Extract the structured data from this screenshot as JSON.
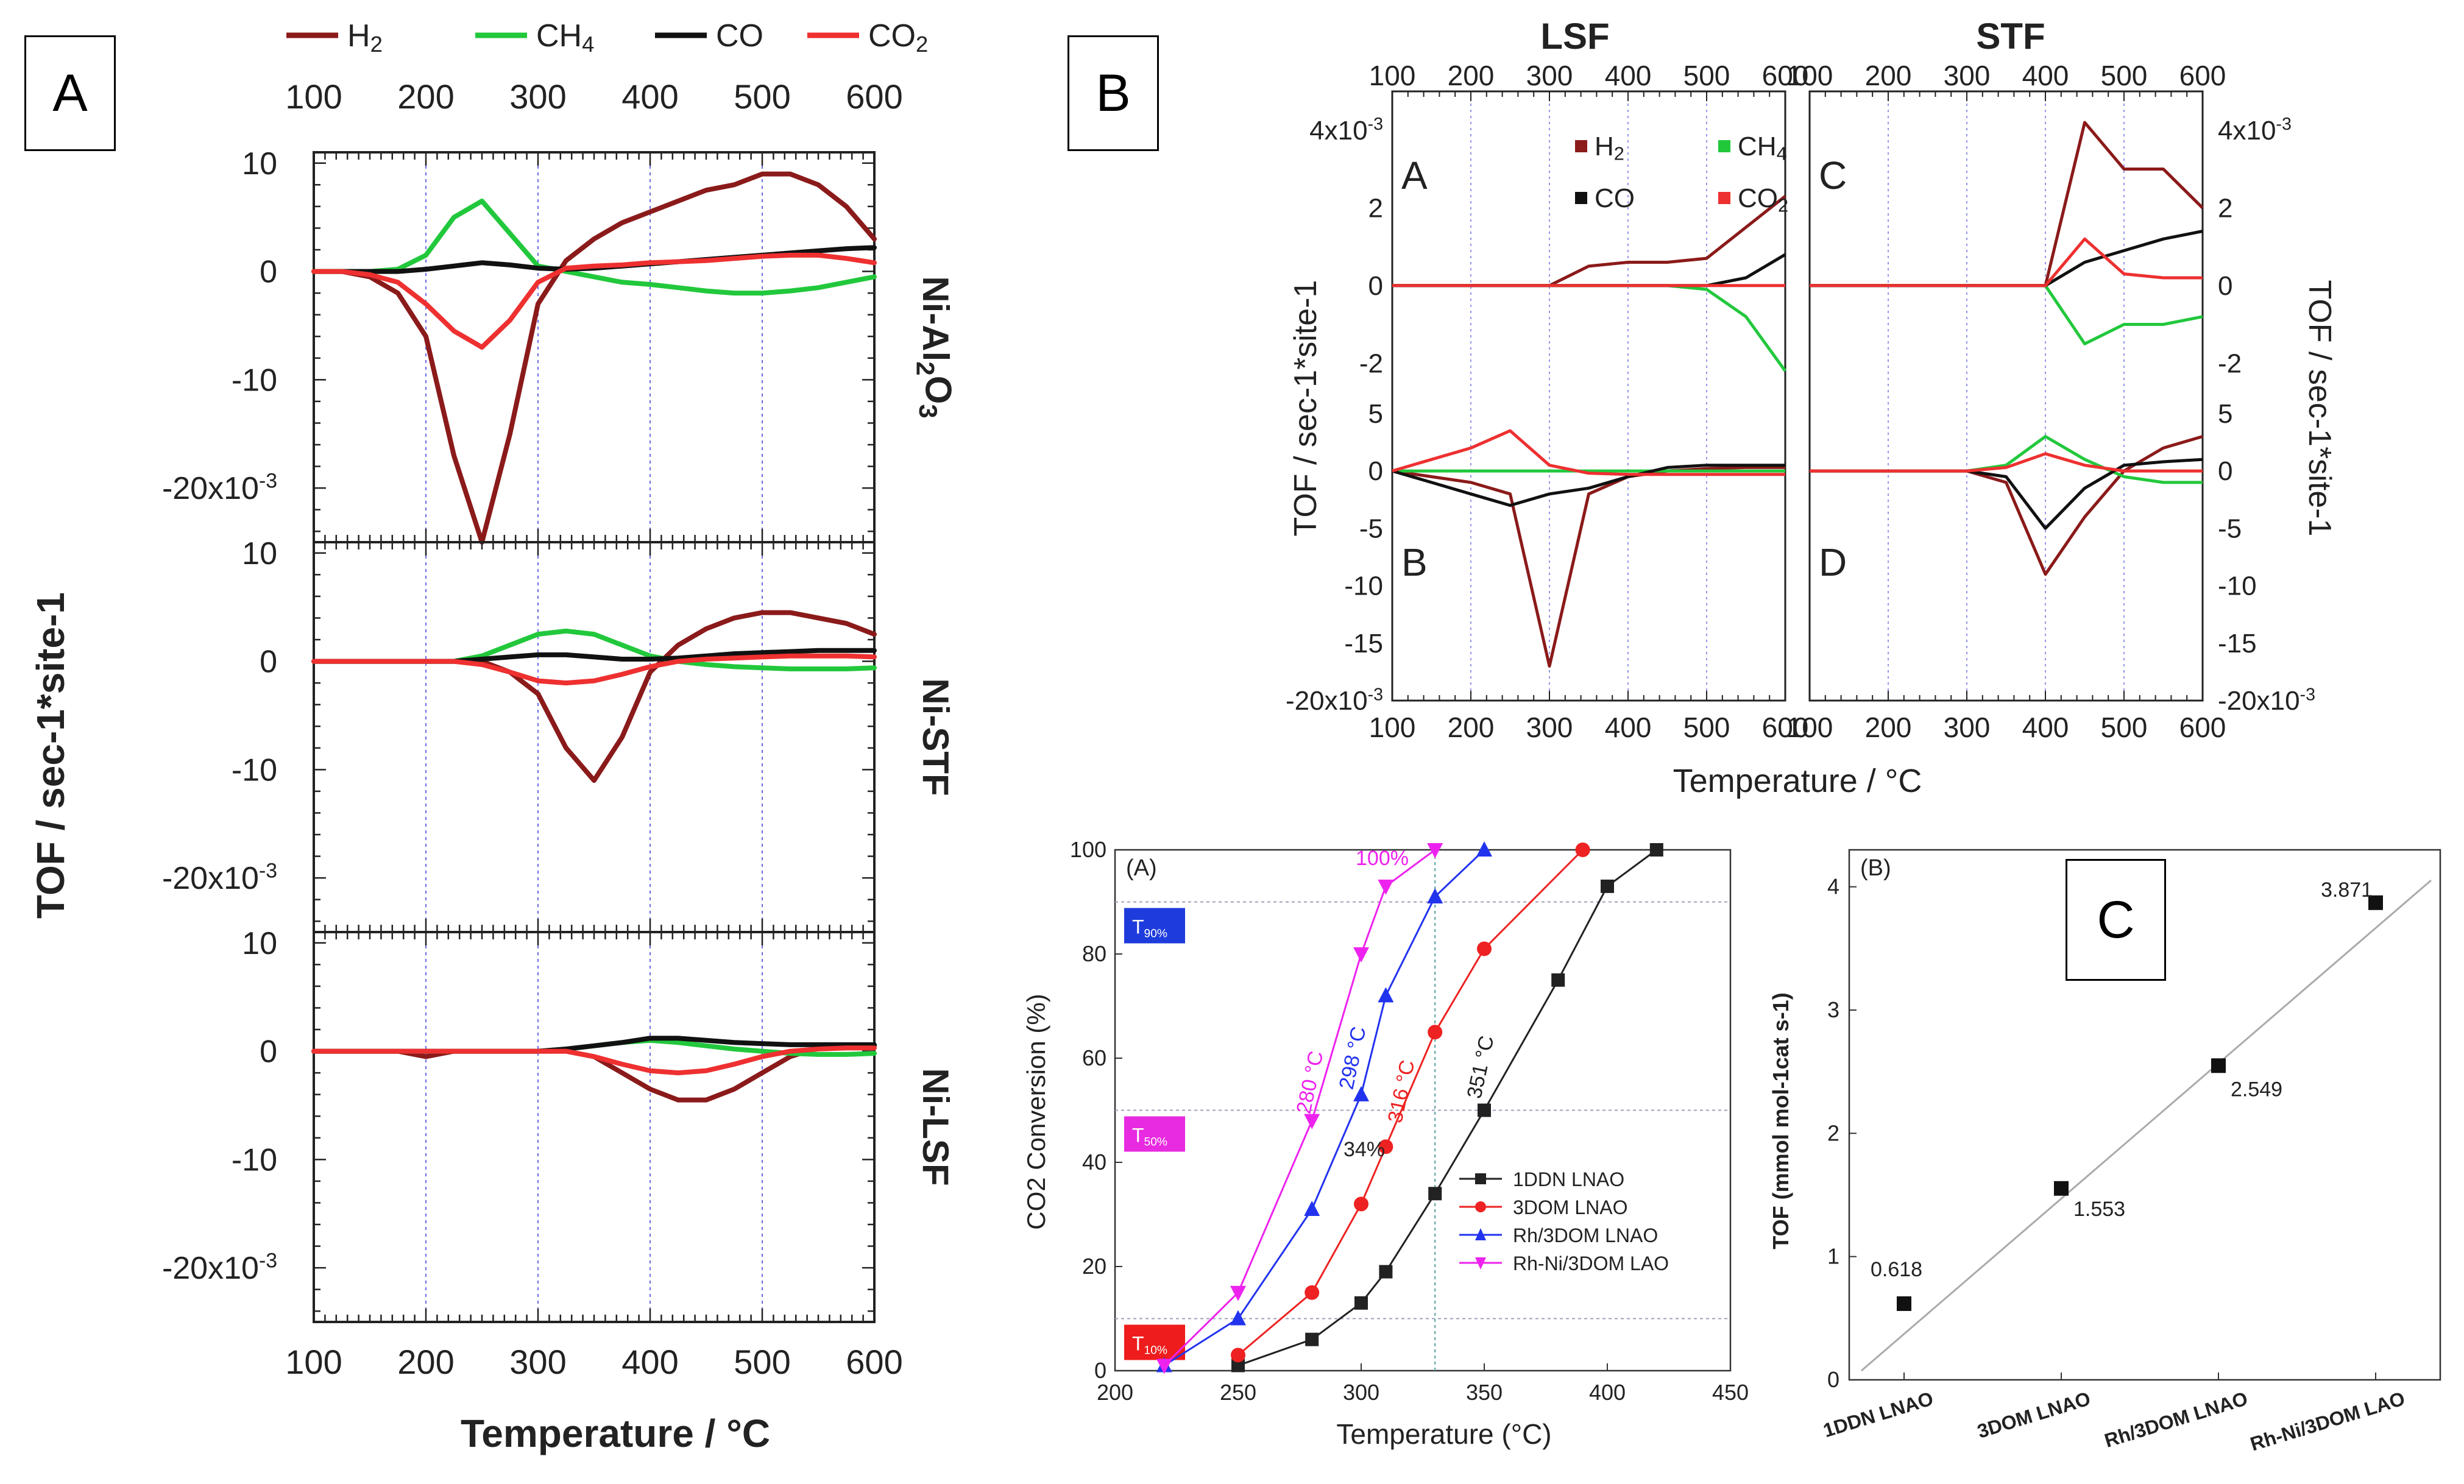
{
  "labels": {
    "a": "A",
    "b": "B",
    "c": "C"
  },
  "chart_data": [
    {
      "type": "line",
      "id": "figA",
      "legend": [
        "H2",
        "CH4",
        "CO",
        "CO2"
      ],
      "colors": {
        "H2": "#8b1a1a",
        "CH4": "#22c83c",
        "CO": "#111111",
        "CO2": "#ee3030"
      },
      "xlabel": "Temperature / °C",
      "ylabel": "TOF / sec-1*site-1",
      "x_ticks": [
        100,
        200,
        300,
        400,
        500,
        600
      ],
      "xlim": [
        100,
        600
      ],
      "y_ticks": [
        "10",
        "0",
        "-10",
        "-20x10-3"
      ],
      "ylim": [
        -25,
        11
      ],
      "x": [
        100,
        125,
        150,
        175,
        200,
        225,
        250,
        275,
        300,
        325,
        350,
        375,
        400,
        425,
        450,
        475,
        500,
        525,
        550,
        575,
        600
      ],
      "panels": [
        {
          "name": "Ni-Al2O3",
          "series": [
            {
              "name": "H2",
              "values": [
                0,
                0,
                -0.5,
                -2,
                -6,
                -17,
                -25,
                -15,
                -3,
                1,
                3,
                4.5,
                5.5,
                6.5,
                7.5,
                8,
                9,
                9,
                8,
                6,
                3
              ]
            },
            {
              "name": "CH4",
              "values": [
                0,
                0,
                0,
                0.2,
                1.5,
                5,
                6.5,
                3.5,
                0.5,
                0,
                -0.5,
                -1,
                -1.2,
                -1.5,
                -1.8,
                -2,
                -2,
                -1.8,
                -1.5,
                -1,
                -0.5
              ]
            },
            {
              "name": "CO",
              "values": [
                0,
                0,
                0,
                0,
                0.2,
                0.5,
                0.8,
                0.6,
                0.3,
                0.2,
                0.3,
                0.5,
                0.7,
                0.9,
                1.1,
                1.3,
                1.5,
                1.7,
                1.9,
                2.1,
                2.2
              ]
            },
            {
              "name": "CO2",
              "values": [
                0,
                0,
                -0.3,
                -1,
                -3,
                -5.5,
                -7,
                -4.5,
                -1,
                0.3,
                0.5,
                0.6,
                0.8,
                0.9,
                1,
                1.2,
                1.4,
                1.5,
                1.5,
                1.2,
                0.8
              ]
            }
          ]
        },
        {
          "name": "Ni-STF",
          "series": [
            {
              "name": "H2",
              "values": [
                0,
                0,
                0,
                0,
                0,
                0,
                0,
                -1,
                -3,
                -8,
                -11,
                -7,
                -1,
                1.5,
                3,
                4,
                4.5,
                4.5,
                4,
                3.5,
                2.5
              ]
            },
            {
              "name": "CH4",
              "values": [
                0,
                0,
                0,
                0,
                0,
                0,
                0.5,
                1.5,
                2.5,
                2.8,
                2.5,
                1.5,
                0.5,
                0,
                -0.3,
                -0.5,
                -0.6,
                -0.7,
                -0.7,
                -0.7,
                -0.6
              ]
            },
            {
              "name": "CO",
              "values": [
                0,
                0,
                0,
                0,
                0,
                0,
                0.2,
                0.4,
                0.6,
                0.6,
                0.4,
                0.2,
                0.2,
                0.3,
                0.5,
                0.7,
                0.8,
                0.9,
                1,
                1,
                1
              ]
            },
            {
              "name": "CO2",
              "values": [
                0,
                0,
                0,
                0,
                0,
                0,
                -0.3,
                -1,
                -1.8,
                -2,
                -1.8,
                -1.2,
                -0.5,
                0,
                0.2,
                0.3,
                0.4,
                0.5,
                0.5,
                0.5,
                0.4
              ]
            }
          ]
        },
        {
          "name": "Ni-LSF",
          "series": [
            {
              "name": "H2",
              "values": [
                0,
                0,
                0,
                0,
                -0.5,
                0,
                0,
                0,
                0,
                0,
                -0.5,
                -2,
                -3.5,
                -4.5,
                -4.5,
                -3.5,
                -2,
                -0.5,
                0.3,
                0.5,
                0.5
              ]
            },
            {
              "name": "CH4",
              "values": [
                0,
                0,
                0,
                0,
                0,
                0,
                0,
                0,
                0,
                0.2,
                0.5,
                0.8,
                1,
                0.8,
                0.5,
                0.2,
                0,
                -0.2,
                -0.3,
                -0.3,
                -0.2
              ]
            },
            {
              "name": "CO",
              "values": [
                0,
                0,
                0,
                0,
                0,
                0,
                0,
                0,
                0,
                0.2,
                0.5,
                0.8,
                1.2,
                1.2,
                1,
                0.8,
                0.7,
                0.6,
                0.6,
                0.6,
                0.6
              ]
            },
            {
              "name": "CO2",
              "values": [
                0,
                0,
                0,
                0,
                0,
                0,
                0,
                0,
                0,
                0,
                -0.5,
                -1.2,
                -1.8,
                -2,
                -1.8,
                -1.2,
                -0.5,
                0,
                0.2,
                0.3,
                0.3
              ]
            }
          ]
        }
      ]
    },
    {
      "type": "line",
      "id": "figB",
      "titles": [
        "LSF",
        "STF"
      ],
      "legend": [
        "H2",
        "CH4",
        "CO",
        "CO2"
      ],
      "xlabel": "Temperature / °C",
      "ylabel": "TOF / sec-1*site-1",
      "x_ticks": [
        100,
        200,
        300,
        400,
        500,
        600
      ],
      "xlim": [
        100,
        600
      ],
      "top_y_ticks": [
        "4x10-3",
        "2",
        "0",
        "-2"
      ],
      "top_ylim": [
        -3,
        5
      ],
      "bottom_y_ticks": [
        "5",
        "0",
        "-5",
        "-10",
        "-15",
        "-20x10-3"
      ],
      "bottom_ylim": [
        -20,
        6
      ],
      "x": [
        100,
        150,
        200,
        250,
        300,
        350,
        400,
        450,
        500,
        550,
        600
      ],
      "panels": [
        {
          "name": "A",
          "series": [
            {
              "name": "H2",
              "values": [
                0,
                0,
                0,
                0,
                0,
                0.5,
                0.6,
                0.6,
                0.7,
                1.5,
                2.3
              ]
            },
            {
              "name": "CH4",
              "values": [
                0,
                0,
                0,
                0,
                0,
                0,
                0,
                0,
                -0.1,
                -0.8,
                -2.2
              ]
            },
            {
              "name": "CO",
              "values": [
                0,
                0,
                0,
                0,
                0,
                0,
                0,
                0,
                0,
                0.2,
                0.8
              ]
            },
            {
              "name": "CO2",
              "values": [
                0,
                0,
                0,
                0,
                0,
                0,
                0,
                0,
                0,
                0,
                0
              ]
            }
          ]
        },
        {
          "name": "B",
          "series": [
            {
              "name": "H2",
              "values": [
                0,
                -0.5,
                -1,
                -2,
                -17,
                -2,
                -0.5,
                0,
                0.2,
                0.3,
                0.3
              ]
            },
            {
              "name": "CH4",
              "values": [
                0,
                0,
                0,
                0,
                0,
                0,
                0,
                0,
                0,
                0,
                0
              ]
            },
            {
              "name": "CO",
              "values": [
                0,
                -1,
                -2,
                -3,
                -2,
                -1.5,
                -0.5,
                0.3,
                0.5,
                0.5,
                0.5
              ]
            },
            {
              "name": "CO2",
              "values": [
                0,
                1,
                2,
                3.5,
                0.5,
                -0.2,
                -0.3,
                -0.3,
                -0.3,
                -0.3,
                -0.3
              ]
            }
          ]
        },
        {
          "name": "C",
          "series": [
            {
              "name": "H2",
              "values": [
                0,
                0,
                0,
                0,
                0,
                0,
                0,
                4.2,
                3,
                3,
                2
              ]
            },
            {
              "name": "CH4",
              "values": [
                0,
                0,
                0,
                0,
                0,
                0,
                0,
                -1.5,
                -1,
                -1,
                -0.8
              ]
            },
            {
              "name": "CO",
              "values": [
                0,
                0,
                0,
                0,
                0,
                0,
                0,
                0.6,
                0.9,
                1.2,
                1.4
              ]
            },
            {
              "name": "CO2",
              "values": [
                0,
                0,
                0,
                0,
                0,
                0,
                0,
                1.2,
                0.3,
                0.2,
                0.2
              ]
            }
          ]
        },
        {
          "name": "D",
          "series": [
            {
              "name": "H2",
              "values": [
                0,
                0,
                0,
                0,
                0,
                -1,
                -9,
                -4,
                0,
                2,
                3
              ]
            },
            {
              "name": "CH4",
              "values": [
                0,
                0,
                0,
                0,
                0,
                0.5,
                3,
                1,
                -0.5,
                -1,
                -1
              ]
            },
            {
              "name": "CO",
              "values": [
                0,
                0,
                0,
                0,
                0,
                -0.5,
                -5,
                -1.5,
                0.5,
                0.8,
                1
              ]
            },
            {
              "name": "CO2",
              "values": [
                0,
                0,
                0,
                0,
                0,
                0.3,
                1.5,
                0.5,
                0,
                0,
                0
              ]
            }
          ]
        }
      ]
    },
    {
      "type": "line",
      "id": "figC_left",
      "panel_label": "(A)",
      "xlabel": "Temperature (°C)",
      "ylabel": "CO2 Conversion (%)",
      "xlim": [
        200,
        450
      ],
      "ylim": [
        0,
        100
      ],
      "x_ticks": [
        200,
        250,
        300,
        350,
        400,
        450
      ],
      "y_ticks": [
        0,
        20,
        40,
        60,
        80,
        100
      ],
      "thresholds": [
        {
          "label": "T90%",
          "y": 90,
          "color": "#1e3cdc"
        },
        {
          "label": "T50%",
          "y": 50,
          "color": "#e82ae0"
        },
        {
          "label": "T10%",
          "y": 10,
          "color": "#ee1c1c"
        }
      ],
      "vline": 330,
      "annotations": [
        "280 °C",
        "298 °C",
        "316 °C",
        "351 °C",
        "34%",
        "100%"
      ],
      "series": [
        {
          "name": "1DDN  LNAO",
          "color": "#222222",
          "marker": "square",
          "x": [
            250,
            280,
            300,
            310,
            330,
            350,
            380,
            400,
            420
          ],
          "values": [
            1,
            6,
            13,
            19,
            34,
            50,
            75,
            93,
            100
          ]
        },
        {
          "name": "3DOM LNAO",
          "color": "#ee2222",
          "marker": "circle",
          "x": [
            250,
            280,
            300,
            310,
            330,
            350,
            390
          ],
          "values": [
            3,
            15,
            32,
            43,
            65,
            81,
            100
          ]
        },
        {
          "name": "Rh/3DOM LNAO",
          "color": "#2233ee",
          "marker": "triangle-up",
          "x": [
            220,
            250,
            280,
            300,
            310,
            330,
            350
          ],
          "values": [
            1,
            10,
            31,
            53,
            72,
            91,
            100
          ]
        },
        {
          "name": "Rh-Ni/3DOM LAO",
          "color": "#ee22ee",
          "marker": "triangle-down",
          "x": [
            220,
            250,
            280,
            300,
            310,
            330
          ],
          "values": [
            1,
            15,
            48,
            80,
            93,
            100
          ]
        }
      ]
    },
    {
      "type": "scatter",
      "id": "figC_right",
      "panel_label": "(B)",
      "ylabel": "TOF (mmol mol-1cat s-1)",
      "ylim": [
        0,
        4.3
      ],
      "y_ticks": [
        0,
        1,
        2,
        3,
        4
      ],
      "categories": [
        "1DDN LNAO",
        "3DOM LNAO",
        "Rh/3DOM LNAO",
        "Rh-Ni/3DOM LAO"
      ],
      "values": [
        0.618,
        1.553,
        2.549,
        3.871
      ],
      "value_labels": [
        "0.618",
        "1.553",
        "2.549",
        "3.871"
      ]
    }
  ]
}
